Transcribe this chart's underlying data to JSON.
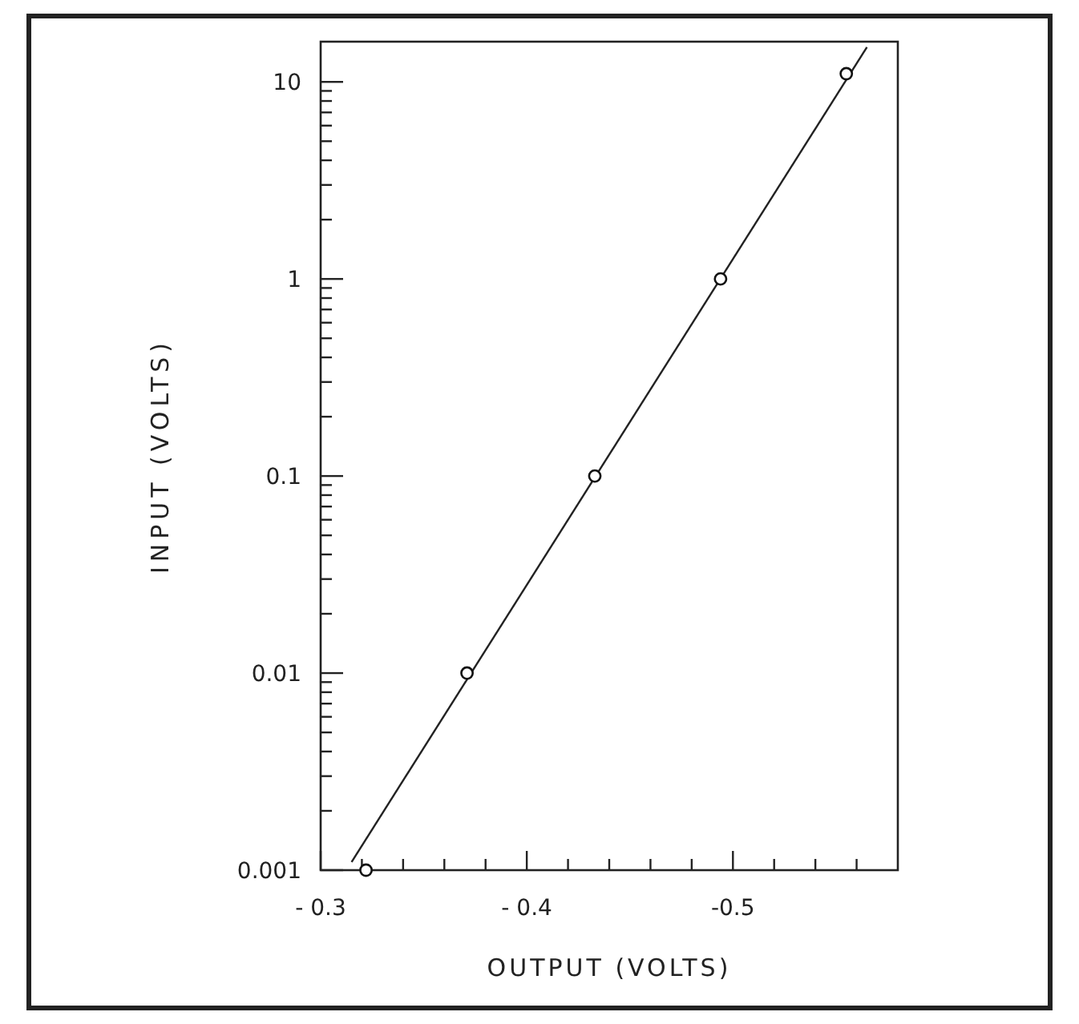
{
  "chart_data": {
    "type": "scatter",
    "xlabel": "OUTPUT (VOLTS)",
    "ylabel": "INPUT (VOLTS)",
    "log": "y",
    "marker": "circle",
    "grid": false,
    "xlim": [
      -0.3,
      -0.58
    ],
    "ylim": [
      0.001,
      16
    ],
    "xticks": [
      {
        "value": -0.3,
        "label": "- 0.3"
      },
      {
        "value": -0.32,
        "label": null
      },
      {
        "value": -0.34,
        "label": null
      },
      {
        "value": -0.36,
        "label": null
      },
      {
        "value": -0.38,
        "label": null
      },
      {
        "value": -0.4,
        "label": "- 0.4"
      },
      {
        "value": -0.42,
        "label": null
      },
      {
        "value": -0.44,
        "label": null
      },
      {
        "value": -0.46,
        "label": null
      },
      {
        "value": -0.48,
        "label": null
      },
      {
        "value": -0.5,
        "label": "-0.5"
      },
      {
        "value": -0.52,
        "label": null
      },
      {
        "value": -0.54,
        "label": null
      },
      {
        "value": -0.56,
        "label": null
      }
    ],
    "yticks": [
      0.001,
      {
        "value": 0.002,
        "label": null
      },
      {
        "value": 0.003,
        "label": null
      },
      {
        "value": 0.004,
        "label": null
      },
      {
        "value": 0.005,
        "label": null
      },
      {
        "value": 0.006,
        "label": null
      },
      {
        "value": 0.007,
        "label": null
      },
      {
        "value": 0.008,
        "label": null
      },
      {
        "value": 0.009,
        "label": null
      },
      0.01,
      {
        "value": 0.02,
        "label": null
      },
      {
        "value": 0.03,
        "label": null
      },
      {
        "value": 0.04,
        "label": null
      },
      {
        "value": 0.05,
        "label": null
      },
      {
        "value": 0.06,
        "label": null
      },
      {
        "value": 0.07,
        "label": null
      },
      {
        "value": 0.08,
        "label": null
      },
      {
        "value": 0.09,
        "label": null
      },
      0.1,
      {
        "value": 0.2,
        "label": null
      },
      {
        "value": 0.3,
        "label": null
      },
      {
        "value": 0.4,
        "label": null
      },
      {
        "value": 0.5,
        "label": null
      },
      {
        "value": 0.6,
        "label": null
      },
      {
        "value": 0.7,
        "label": null
      },
      {
        "value": 0.8,
        "label": null
      },
      {
        "value": 0.9,
        "label": null
      },
      1,
      {
        "value": 2,
        "label": null
      },
      {
        "value": 3,
        "label": null
      },
      {
        "value": 4,
        "label": null
      },
      {
        "value": 5,
        "label": null
      },
      {
        "value": 6,
        "label": null
      },
      {
        "value": 7,
        "label": null
      },
      {
        "value": 8,
        "label": null
      },
      {
        "value": 9,
        "label": null
      },
      10
    ],
    "series": [
      {
        "type": "line",
        "marker": "none",
        "color": "#222222",
        "x": [
          -0.315,
          -0.565
        ],
        "values": [
          0.0011,
          15
        ]
      },
      {
        "color": "#111111",
        "x": [
          -0.322,
          -0.371,
          -0.433,
          -0.494,
          -0.555
        ],
        "values": [
          0.001,
          0.01,
          0.1,
          1,
          11
        ]
      }
    ]
  }
}
